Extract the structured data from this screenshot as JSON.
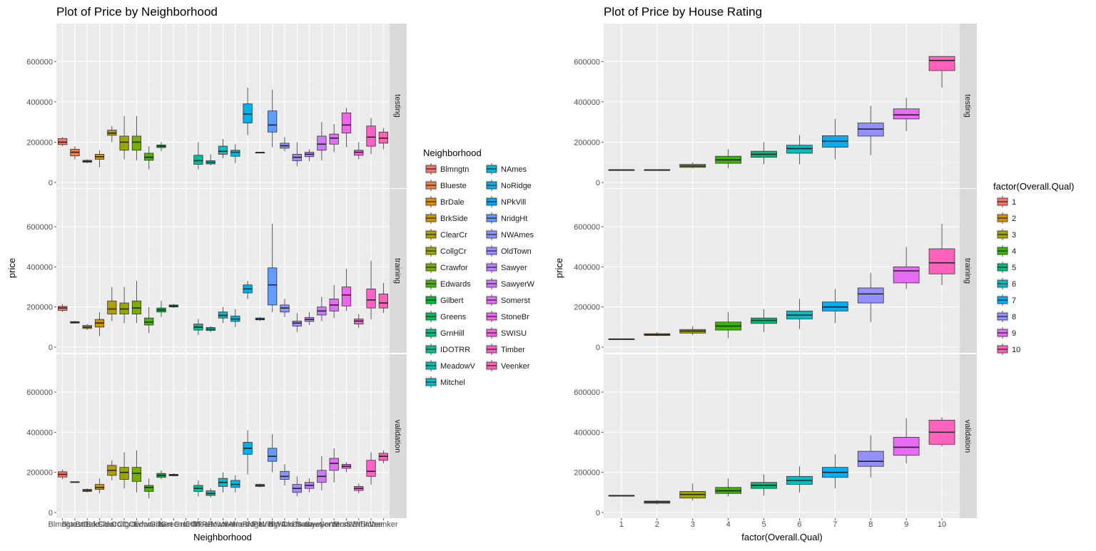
{
  "chart_data": [
    {
      "type": "boxplot",
      "title": "Plot of Price by Neighborhood",
      "xlabel": "Neighborhood",
      "ylabel": "price",
      "ylim": [
        0,
        760000
      ],
      "yticks": [
        0,
        200000,
        400000,
        600000
      ],
      "ytick_labels": [
        "0",
        "200000",
        "400000",
        "600000"
      ],
      "xtick_labels": [
        "Blmngtn",
        "Blueste",
        "BrDale",
        "BrkSide",
        "ClearCr",
        "CollgCr",
        "Crawfor",
        "Edwards",
        "Gilbert",
        "Greens",
        "GrnHill",
        "IDOTRR",
        "MeadowV",
        "Mitchel",
        "NAmes",
        "NoRidge",
        "NPkVill",
        "NridgHt",
        "NWAmes",
        "OldTown",
        "Sawyer",
        "SawyerW",
        "Somerst",
        "StoneBr",
        "SWISU",
        "Timber",
        "Veenker"
      ],
      "facets": [
        "testing",
        "training",
        "validation"
      ],
      "legend": {
        "title": "Neighborhood",
        "position": "right",
        "items": [
          "Blmngtn",
          "Blueste",
          "BrDale",
          "BrkSide",
          "ClearCr",
          "CollgCr",
          "Crawfor",
          "Edwards",
          "Gilbert",
          "Greens",
          "GrnHill",
          "IDOTRR",
          "MeadowV",
          "Mitchel",
          "NAmes",
          "NoRidge",
          "NPkVill",
          "NridgHt",
          "NWAmes",
          "OldTown",
          "Sawyer",
          "SawyerW",
          "Somerst",
          "StoneBr",
          "SWISU",
          "Timber",
          "Veenker"
        ],
        "colors": [
          "#F8766D",
          "#EE8043",
          "#E08B00",
          "#CC9600",
          "#B49F00",
          "#99A800",
          "#77AF00",
          "#49B500",
          "#00BA38",
          "#00BD62",
          "#00BF80",
          "#00C09A",
          "#00C0B2",
          "#00BDC8",
          "#00B8DA",
          "#00B0EA",
          "#00A7F5",
          "#619CFF",
          "#8994FF",
          "#A58AFF",
          "#BC81FF",
          "#CF78FF",
          "#E36EF6",
          "#F066EA",
          "#F962DC",
          "#FF61C9",
          "#FF64B3"
        ]
      },
      "series": [
        {
          "name": "testing",
          "boxes": [
            [
              180000,
              188000,
              200000,
              218000,
              225000
            ],
            [
              115000,
              132000,
              150000,
              165000,
              180000
            ],
            [
              95000,
              100000,
              105000,
              110000,
              115000
            ],
            [
              75000,
              115000,
              128000,
              140000,
              160000
            ],
            [
              200000,
              234000,
              245000,
              260000,
              280000
            ],
            [
              115000,
              160000,
              200000,
              230000,
              330000
            ],
            [
              110000,
              160000,
              200000,
              230000,
              330000
            ],
            [
              65000,
              110000,
              125000,
              145000,
              180000
            ],
            [
              155000,
              173000,
              180000,
              186000,
              200000
            ],
            null,
            null,
            [
              65000,
              90000,
              108000,
              135000,
              200000
            ],
            [
              85000,
              92000,
              100000,
              108000,
              140000
            ],
            [
              120000,
              140000,
              155000,
              180000,
              215000
            ],
            [
              95000,
              130000,
              150000,
              160000,
              190000
            ],
            [
              235000,
              295000,
              340000,
              390000,
              470000
            ],
            [
              145000,
              146000,
              148000,
              150000,
              152000
            ],
            [
              175000,
              250000,
              285000,
              355000,
              460000
            ],
            [
              155000,
              170000,
              182000,
              195000,
              225000
            ],
            [
              80000,
              108000,
              125000,
              140000,
              200000
            ],
            [
              105000,
              128000,
              140000,
              150000,
              165000
            ],
            [
              110000,
              160000,
              190000,
              230000,
              300000
            ],
            [
              150000,
              190000,
              220000,
              240000,
              290000
            ],
            [
              175000,
              245000,
              285000,
              345000,
              370000
            ],
            [
              115000,
              135000,
              150000,
              160000,
              200000
            ],
            [
              140000,
              180000,
              225000,
              280000,
              320000
            ],
            [
              165000,
              195000,
              220000,
              250000,
              270000
            ]
          ]
        },
        {
          "name": "training",
          "boxes": [
            [
              175000,
              183000,
              195000,
              203000,
              215000
            ],
            [
              118000,
              120000,
              123000,
              127000,
              130000
            ],
            [
              85000,
              93000,
              100000,
              108000,
              115000
            ],
            [
              55000,
              100000,
              120000,
              138000,
              175000
            ],
            [
              130000,
              165000,
              190000,
              230000,
              300000
            ],
            [
              120000,
              165000,
              190000,
              220000,
              300000
            ],
            [
              120000,
              165000,
              195000,
              230000,
              330000
            ],
            [
              70000,
              110000,
              125000,
              145000,
              200000
            ],
            [
              150000,
              175000,
              185000,
              195000,
              230000
            ],
            [
              195000,
              200000,
              205000,
              210000,
              215000
            ],
            null,
            [
              60000,
              85000,
              100000,
              115000,
              140000
            ],
            [
              75000,
              83000,
              90000,
              98000,
              105000
            ],
            [
              120000,
              145000,
              158000,
              175000,
              200000
            ],
            [
              100000,
              128000,
              140000,
              155000,
              190000
            ],
            [
              240000,
              270000,
              290000,
              310000,
              330000
            ],
            [
              130000,
              136000,
              140000,
              145000,
              150000
            ],
            [
              175000,
              210000,
              310000,
              395000,
              615000
            ],
            [
              150000,
              175000,
              195000,
              210000,
              240000
            ],
            [
              75000,
              105000,
              120000,
              130000,
              170000
            ],
            [
              110000,
              128000,
              138000,
              148000,
              175000
            ],
            [
              130000,
              160000,
              180000,
              200000,
              250000
            ],
            [
              145000,
              180000,
              210000,
              240000,
              310000
            ],
            [
              180000,
              205000,
              260000,
              300000,
              390000
            ],
            [
              95000,
              115000,
              130000,
              140000,
              165000
            ],
            [
              140000,
              195000,
              235000,
              290000,
              430000
            ],
            [
              170000,
              195000,
              220000,
              265000,
              320000
            ]
          ]
        },
        {
          "name": "validation",
          "boxes": [
            [
              165000,
              177000,
              190000,
              203000,
              215000
            ],
            [
              150000,
              151000,
              152000,
              153000,
              154000
            ],
            [
              100000,
              105000,
              110000,
              115000,
              120000
            ],
            [
              95000,
              115000,
              125000,
              140000,
              170000
            ],
            [
              160000,
              185000,
              210000,
              235000,
              260000
            ],
            [
              120000,
              165000,
              200000,
              225000,
              300000
            ],
            [
              100000,
              155000,
              195000,
              225000,
              310000
            ],
            [
              70000,
              105000,
              125000,
              135000,
              170000
            ],
            [
              165000,
              175000,
              185000,
              195000,
              210000
            ],
            [
              180000,
              183000,
              187000,
              190000,
              195000
            ],
            null,
            [
              80000,
              105000,
              120000,
              135000,
              160000
            ],
            [
              75000,
              85000,
              95000,
              108000,
              120000
            ],
            [
              100000,
              130000,
              150000,
              170000,
              200000
            ],
            [
              100000,
              125000,
              140000,
              160000,
              185000
            ],
            [
              190000,
              290000,
              320000,
              350000,
              410000
            ],
            [
              125000,
              130000,
              135000,
              140000,
              145000
            ],
            [
              200000,
              255000,
              280000,
              320000,
              390000
            ],
            [
              135000,
              165000,
              180000,
              205000,
              240000
            ],
            [
              80000,
              100000,
              120000,
              140000,
              180000
            ],
            [
              100000,
              120000,
              135000,
              150000,
              170000
            ],
            [
              110000,
              150000,
              180000,
              210000,
              280000
            ],
            [
              150000,
              210000,
              245000,
              270000,
              320000
            ],
            [
              200000,
              220000,
              230000,
              240000,
              250000
            ],
            [
              95000,
              110000,
              120000,
              130000,
              145000
            ],
            [
              140000,
              180000,
              205000,
              260000,
              300000
            ],
            [
              245000,
              260000,
              280000,
              295000,
              310000
            ]
          ]
        }
      ]
    },
    {
      "type": "boxplot",
      "title": "Plot of Price by House Rating",
      "xlabel": "factor(Overall.Qual)",
      "ylabel": "price",
      "ylim": [
        0,
        760000
      ],
      "yticks": [
        0,
        200000,
        400000,
        600000
      ],
      "ytick_labels": [
        "0",
        "200000",
        "400000",
        "600000"
      ],
      "xtick_labels": [
        "1",
        "2",
        "3",
        "4",
        "5",
        "6",
        "7",
        "8",
        "9",
        "10"
      ],
      "facets": [
        "testing",
        "training",
        "validation"
      ],
      "legend": {
        "title": "factor(Overall.Qual)",
        "position": "right",
        "items": [
          "1",
          "2",
          "3",
          "4",
          "5",
          "6",
          "7",
          "8",
          "9",
          "10"
        ],
        "colors": [
          "#F8766D",
          "#D89000",
          "#A3A500",
          "#39B600",
          "#00BF7D",
          "#00BFC4",
          "#00B0F6",
          "#9590FF",
          "#E76BF3",
          "#FF62BC"
        ]
      },
      "series": [
        {
          "name": "testing",
          "boxes": [
            [
              60000,
              61000,
              62000,
              63000,
              64000
            ],
            [
              60000,
              61000,
              62000,
              63000,
              64000
            ],
            [
              70000,
              75000,
              82000,
              90000,
              100000
            ],
            [
              70000,
              95000,
              112000,
              130000,
              165000
            ],
            [
              90000,
              125000,
              140000,
              155000,
              200000
            ],
            [
              90000,
              145000,
              168000,
              185000,
              235000
            ],
            [
              115000,
              175000,
              205000,
              232000,
              315000
            ],
            [
              135000,
              230000,
              265000,
              295000,
              380000
            ],
            [
              255000,
              315000,
              335000,
              365000,
              420000
            ],
            [
              470000,
              555000,
              605000,
              625000,
              625000
            ]
          ]
        },
        {
          "name": "training",
          "boxes": [
            [
              38000,
              39000,
              40000,
              41000,
              42000
            ],
            [
              55000,
              58000,
              62000,
              67000,
              75000
            ],
            [
              60000,
              70000,
              80000,
              88000,
              105000
            ],
            [
              45000,
              85000,
              105000,
              125000,
              175000
            ],
            [
              75000,
              118000,
              133000,
              145000,
              190000
            ],
            [
              90000,
              140000,
              160000,
              180000,
              240000
            ],
            [
              120000,
              180000,
              200000,
              225000,
              290000
            ],
            [
              125000,
              220000,
              265000,
              295000,
              370000
            ],
            [
              290000,
              320000,
              380000,
              400000,
              500000
            ],
            [
              310000,
              365000,
              420000,
              490000,
              615000
            ]
          ]
        },
        {
          "name": "validation",
          "boxes": [
            [
              82000,
              83000,
              84000,
              85000,
              86000
            ],
            [
              40000,
              46000,
              52000,
              57000,
              62000
            ],
            [
              60000,
              72000,
              90000,
              105000,
              145000
            ],
            [
              80000,
              95000,
              108000,
              125000,
              170000
            ],
            [
              85000,
              120000,
              135000,
              150000,
              190000
            ],
            [
              100000,
              140000,
              160000,
              180000,
              230000
            ],
            [
              120000,
              175000,
              200000,
              225000,
              290000
            ],
            [
              175000,
              230000,
              255000,
              305000,
              385000
            ],
            [
              245000,
              285000,
              325000,
              375000,
              470000
            ],
            [
              330000,
              340000,
              400000,
              460000,
              475000
            ]
          ]
        }
      ]
    }
  ]
}
